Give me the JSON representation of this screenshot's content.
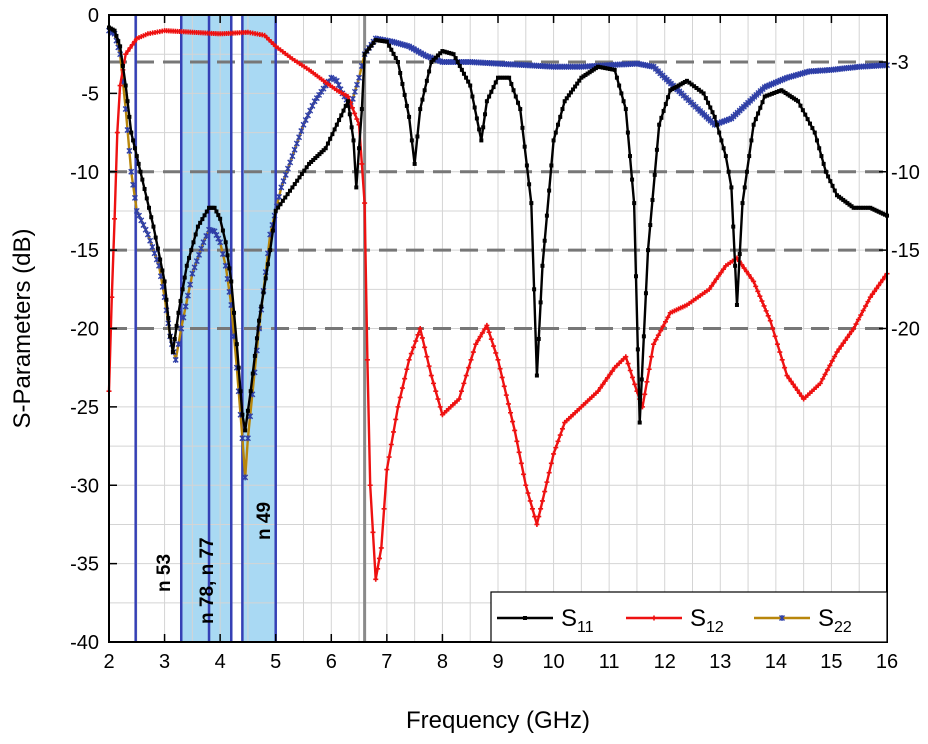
{
  "chart_data": {
    "type": "line",
    "xlabel": "Frequency (GHz)",
    "ylabel": "S-Parameters (dB)",
    "xlim": [
      2,
      16
    ],
    "ylim": [
      -40,
      0
    ],
    "x_ticks": [
      2,
      3,
      4,
      5,
      6,
      7,
      8,
      9,
      10,
      11,
      12,
      13,
      14,
      15,
      16
    ],
    "y_ticks": [
      0,
      -5,
      -10,
      -15,
      -20,
      -25,
      -30,
      -35,
      -40
    ],
    "right_ticks": [
      {
        "value": -3,
        "label": "-3"
      },
      {
        "value": -10,
        "label": "-10"
      },
      {
        "value": -15,
        "label": "-15"
      },
      {
        "value": -20,
        "label": "-20"
      }
    ],
    "grid": true,
    "reference_lines": [
      -3,
      -10,
      -15,
      -20
    ],
    "divider_x": 6.6,
    "bands": [
      {
        "label": "n 53",
        "x_start": 2.48,
        "x_end": 2.48,
        "shaded": false
      },
      {
        "label": "n 78, n 77",
        "x_start": 3.3,
        "x_end": 4.2,
        "shaded": true
      },
      {
        "label": "n 49",
        "x_start": 4.4,
        "x_end": 5.0,
        "shaded": true
      }
    ],
    "band_lines": [
      2.48,
      3.3,
      3.8,
      4.2,
      4.4,
      5.0
    ],
    "legend_position": "bottom-right",
    "series": [
      {
        "name": "S",
        "subscript": "11",
        "color": "#000000",
        "marker": "square",
        "points": [
          [
            2.0,
            -0.8
          ],
          [
            2.1,
            -1.0
          ],
          [
            2.2,
            -2.0
          ],
          [
            2.3,
            -4.5
          ],
          [
            2.4,
            -7.5
          ],
          [
            2.5,
            -9.0
          ],
          [
            2.6,
            -10.5
          ],
          [
            2.8,
            -13.5
          ],
          [
            3.0,
            -17.0
          ],
          [
            3.1,
            -20.5
          ],
          [
            3.15,
            -21.5
          ],
          [
            3.25,
            -19.0
          ],
          [
            3.4,
            -16.0
          ],
          [
            3.6,
            -13.5
          ],
          [
            3.8,
            -12.3
          ],
          [
            3.9,
            -12.3
          ],
          [
            4.0,
            -13.0
          ],
          [
            4.1,
            -14.5
          ],
          [
            4.2,
            -17.0
          ],
          [
            4.3,
            -21.0
          ],
          [
            4.4,
            -25.5
          ],
          [
            4.45,
            -26.5
          ],
          [
            4.55,
            -24.0
          ],
          [
            4.7,
            -19.5
          ],
          [
            4.9,
            -15.0
          ],
          [
            5.0,
            -12.5
          ],
          [
            5.3,
            -11.0
          ],
          [
            5.6,
            -9.5
          ],
          [
            5.9,
            -8.5
          ],
          [
            6.1,
            -7.0
          ],
          [
            6.3,
            -5.5
          ],
          [
            6.4,
            -8.0
          ],
          [
            6.45,
            -11.0
          ],
          [
            6.55,
            -6.0
          ],
          [
            6.6,
            -2.5
          ],
          [
            6.8,
            -1.6
          ],
          [
            7.0,
            -1.7
          ],
          [
            7.2,
            -3.0
          ],
          [
            7.4,
            -6.5
          ],
          [
            7.5,
            -9.5
          ],
          [
            7.6,
            -6.0
          ],
          [
            7.8,
            -3.0
          ],
          [
            8.0,
            -2.3
          ],
          [
            8.2,
            -2.5
          ],
          [
            8.5,
            -4.5
          ],
          [
            8.7,
            -8.0
          ],
          [
            8.8,
            -5.5
          ],
          [
            9.0,
            -4.0
          ],
          [
            9.2,
            -4.0
          ],
          [
            9.4,
            -6.0
          ],
          [
            9.6,
            -12.0
          ],
          [
            9.7,
            -23.0
          ],
          [
            9.8,
            -16.0
          ],
          [
            10.0,
            -8.0
          ],
          [
            10.2,
            -5.5
          ],
          [
            10.5,
            -4.0
          ],
          [
            10.8,
            -3.3
          ],
          [
            11.1,
            -3.5
          ],
          [
            11.3,
            -6.0
          ],
          [
            11.45,
            -12.0
          ],
          [
            11.55,
            -26.0
          ],
          [
            11.7,
            -15.0
          ],
          [
            11.9,
            -7.0
          ],
          [
            12.1,
            -4.8
          ],
          [
            12.4,
            -4.2
          ],
          [
            12.7,
            -5.0
          ],
          [
            12.9,
            -6.5
          ],
          [
            13.1,
            -9.0
          ],
          [
            13.2,
            -11.0
          ],
          [
            13.3,
            -18.5
          ],
          [
            13.4,
            -12.0
          ],
          [
            13.6,
            -7.0
          ],
          [
            13.8,
            -5.2
          ],
          [
            14.1,
            -4.8
          ],
          [
            14.4,
            -5.5
          ],
          [
            14.7,
            -7.5
          ],
          [
            14.9,
            -10.0
          ],
          [
            15.1,
            -11.5
          ],
          [
            15.4,
            -12.3
          ],
          [
            15.7,
            -12.3
          ],
          [
            16.0,
            -12.8
          ]
        ]
      },
      {
        "name": "S",
        "subscript": "12",
        "color": "#ee1111",
        "marker": "plus",
        "points": [
          [
            2.0,
            -24.0
          ],
          [
            2.05,
            -18.0
          ],
          [
            2.1,
            -13.0
          ],
          [
            2.15,
            -7.5
          ],
          [
            2.2,
            -4.5
          ],
          [
            2.3,
            -2.5
          ],
          [
            2.5,
            -1.5
          ],
          [
            2.7,
            -1.2
          ],
          [
            3.0,
            -1.0
          ],
          [
            3.5,
            -1.1
          ],
          [
            4.0,
            -1.2
          ],
          [
            4.5,
            -1.1
          ],
          [
            4.8,
            -1.3
          ],
          [
            5.0,
            -2.0
          ],
          [
            5.3,
            -2.8
          ],
          [
            5.6,
            -3.5
          ],
          [
            5.9,
            -4.3
          ],
          [
            6.1,
            -4.8
          ],
          [
            6.3,
            -5.2
          ],
          [
            6.5,
            -7.0
          ],
          [
            6.6,
            -12.0
          ],
          [
            6.65,
            -22.0
          ],
          [
            6.7,
            -30.0
          ],
          [
            6.8,
            -36.0
          ],
          [
            6.9,
            -34.0
          ],
          [
            7.0,
            -29.0
          ],
          [
            7.2,
            -25.0
          ],
          [
            7.4,
            -22.0
          ],
          [
            7.6,
            -20.0
          ],
          [
            7.8,
            -23.0
          ],
          [
            8.0,
            -25.5
          ],
          [
            8.3,
            -24.5
          ],
          [
            8.6,
            -21.0
          ],
          [
            8.8,
            -19.8
          ],
          [
            9.0,
            -22.0
          ],
          [
            9.3,
            -26.5
          ],
          [
            9.5,
            -30.0
          ],
          [
            9.7,
            -32.5
          ],
          [
            9.8,
            -31.0
          ],
          [
            10.0,
            -28.0
          ],
          [
            10.2,
            -26.0
          ],
          [
            10.5,
            -25.0
          ],
          [
            10.8,
            -24.0
          ],
          [
            11.1,
            -22.5
          ],
          [
            11.3,
            -21.8
          ],
          [
            11.5,
            -24.0
          ],
          [
            11.6,
            -25.0
          ],
          [
            11.8,
            -21.0
          ],
          [
            12.1,
            -19.0
          ],
          [
            12.4,
            -18.5
          ],
          [
            12.8,
            -17.5
          ],
          [
            13.1,
            -16.0
          ],
          [
            13.3,
            -15.5
          ],
          [
            13.6,
            -17.0
          ],
          [
            13.9,
            -19.5
          ],
          [
            14.2,
            -23.0
          ],
          [
            14.5,
            -24.5
          ],
          [
            14.8,
            -23.5
          ],
          [
            15.1,
            -21.5
          ],
          [
            15.4,
            -20.0
          ],
          [
            15.7,
            -18.0
          ],
          [
            16.0,
            -16.5
          ]
        ]
      },
      {
        "name": "S",
        "subscript": "22",
        "color": "#2e3fa8",
        "line_color": "#b8860b",
        "marker": "star",
        "points": [
          [
            2.0,
            -1.0
          ],
          [
            2.1,
            -1.2
          ],
          [
            2.2,
            -2.5
          ],
          [
            2.3,
            -6.0
          ],
          [
            2.4,
            -10.0
          ],
          [
            2.5,
            -12.5
          ],
          [
            2.7,
            -14.0
          ],
          [
            2.9,
            -16.0
          ],
          [
            3.0,
            -18.0
          ],
          [
            3.1,
            -20.5
          ],
          [
            3.2,
            -22.0
          ],
          [
            3.3,
            -20.0
          ],
          [
            3.5,
            -16.5
          ],
          [
            3.7,
            -14.5
          ],
          [
            3.8,
            -13.7
          ],
          [
            3.9,
            -13.8
          ],
          [
            4.0,
            -14.5
          ],
          [
            4.1,
            -16.0
          ],
          [
            4.2,
            -18.5
          ],
          [
            4.3,
            -22.5
          ],
          [
            4.4,
            -27.0
          ],
          [
            4.45,
            -29.5
          ],
          [
            4.5,
            -27.0
          ],
          [
            4.7,
            -20.0
          ],
          [
            4.9,
            -14.0
          ],
          [
            5.1,
            -11.0
          ],
          [
            5.3,
            -9.0
          ],
          [
            5.5,
            -7.0
          ],
          [
            5.7,
            -5.5
          ],
          [
            5.9,
            -4.5
          ],
          [
            6.0,
            -4.0
          ],
          [
            6.1,
            -4.2
          ],
          [
            6.2,
            -5.0
          ],
          [
            6.35,
            -5.8
          ],
          [
            6.5,
            -4.0
          ],
          [
            6.6,
            -2.5
          ],
          [
            6.8,
            -1.5
          ],
          [
            7.1,
            -1.7
          ],
          [
            7.4,
            -2.0
          ],
          [
            7.7,
            -2.6
          ],
          [
            8.0,
            -3.0
          ],
          [
            8.5,
            -3.0
          ],
          [
            9.0,
            -3.1
          ],
          [
            9.5,
            -3.2
          ],
          [
            10.0,
            -3.3
          ],
          [
            10.5,
            -3.3
          ],
          [
            11.0,
            -3.2
          ],
          [
            11.5,
            -3.1
          ],
          [
            11.8,
            -3.3
          ],
          [
            12.0,
            -4.0
          ],
          [
            12.3,
            -5.0
          ],
          [
            12.6,
            -6.0
          ],
          [
            12.9,
            -7.0
          ],
          [
            13.2,
            -6.6
          ],
          [
            13.5,
            -5.6
          ],
          [
            13.8,
            -4.6
          ],
          [
            14.2,
            -4.0
          ],
          [
            14.6,
            -3.6
          ],
          [
            15.0,
            -3.5
          ],
          [
            15.5,
            -3.3
          ],
          [
            16.0,
            -3.2
          ]
        ]
      }
    ]
  }
}
